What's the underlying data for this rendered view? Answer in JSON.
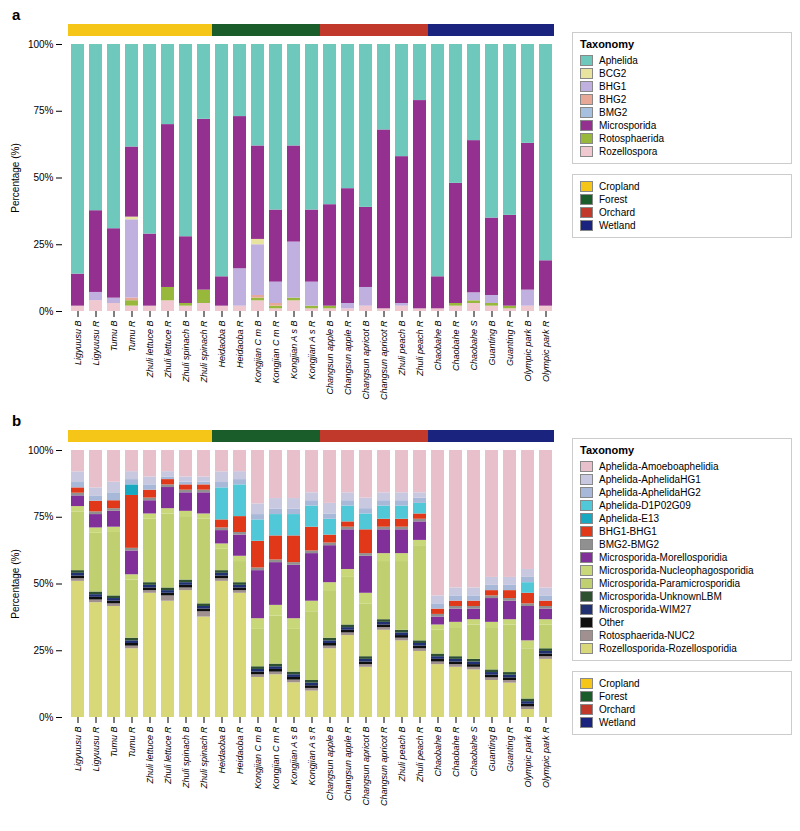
{
  "chart_data": [
    {
      "type": "bar",
      "stacked": true,
      "title": "a",
      "ylabel": "Percentage (%)",
      "ylim": [
        0,
        1
      ],
      "yticks": [
        {
          "value": 0,
          "label": "0%"
        },
        {
          "value": 0.25,
          "label": "25%"
        },
        {
          "value": 0.5,
          "label": "50%"
        },
        {
          "value": 0.75,
          "label": "75%"
        },
        {
          "value": 1,
          "label": "100%"
        }
      ],
      "grid": false,
      "legend": "right",
      "legend_title": "Taxonomy",
      "categories": [
        "Ligyuusu B",
        "Ligyuusu R",
        "Tumu B",
        "Tumu R",
        "Zhuli lettuce B",
        "Zhuli lettuce R",
        "Zhuli spinach B",
        "Zhuli spinach R",
        "Heidaoba B",
        "Heidaoba R",
        "Kongjian C m B",
        "Kongjian C m R",
        "Kongjian A s B",
        "Kongjian A s R",
        "Changsun apple B",
        "Changsun apple R",
        "Changsun apricot B",
        "Changsun apricot R",
        "Zhuli peach B",
        "Zhuli peach R",
        "Chaobahe B",
        "Chaobahe R",
        "Chaobahe S",
        "Guanting B",
        "Guanting R",
        "Olympic park B",
        "Olympic park R"
      ],
      "series": [
        {
          "name": "Rozellospora",
          "color": "#F0C8D0",
          "values": [
            0.02,
            0.0408,
            0.03,
            0.0202,
            0.02,
            0.04,
            0.02,
            0.03,
            0.02,
            0.02,
            0.04,
            0.01,
            0.04,
            0.01,
            0.01,
            0.01,
            0.02,
            0.01,
            0.02,
            0.01,
            0.01,
            0.02,
            0.03,
            0.02,
            0.01,
            0.02,
            0.02
          ]
        },
        {
          "name": "Rotosphaerida",
          "color": "#98B83C",
          "values": [
            0,
            0,
            0,
            0.0202,
            0,
            0.05,
            0.01,
            0.05,
            0,
            0,
            0.01,
            0.01,
            0.01,
            0.01,
            0.01,
            0,
            0,
            0,
            0,
            0,
            0,
            0.01,
            0.01,
            0.01,
            0.01,
            0,
            0
          ]
        },
        {
          "name": "BMG2",
          "color": "#A8C0E0",
          "values": [
            0,
            0,
            0,
            0,
            0,
            0,
            0,
            0,
            0,
            0,
            0,
            0,
            0,
            0,
            0,
            0,
            0,
            0,
            0,
            0,
            0,
            0,
            0,
            0,
            0,
            0,
            0
          ]
        },
        {
          "name": "BHG2",
          "color": "#E8A898",
          "values": [
            0,
            0,
            0,
            0.0101,
            0,
            0,
            0,
            0,
            0,
            0,
            0.01,
            0.01,
            0,
            0,
            0,
            0,
            0,
            0,
            0,
            0,
            0,
            0,
            0,
            0,
            0,
            0,
            0
          ]
        },
        {
          "name": "BHG1",
          "color": "#C0B0E0",
          "values": [
            0,
            0.0306,
            0.02,
            0.2929,
            0,
            0,
            0,
            0,
            0,
            0.14,
            0.19,
            0.08,
            0.21,
            0.09,
            0,
            0.02,
            0.07,
            0,
            0.01,
            0,
            0,
            0,
            0.03,
            0.03,
            0,
            0.06,
            0
          ]
        },
        {
          "name": "BCG2",
          "color": "#E8E4A0",
          "values": [
            0,
            0,
            0,
            0.0101,
            0,
            0,
            0,
            0,
            0,
            0,
            0.02,
            0,
            0,
            0,
            0,
            0,
            0,
            0,
            0,
            0,
            0,
            0,
            0,
            0,
            0,
            0,
            0
          ]
        },
        {
          "name": "Microsporida",
          "color": "#943090",
          "values": [
            0.12,
            0.3061,
            0.26,
            0.2626,
            0.27,
            0.61,
            0.25,
            0.64,
            0.11,
            0.57,
            0.35,
            0.27,
            0.36,
            0.27,
            0.38,
            0.43,
            0.3,
            0.67,
            0.55,
            0.78,
            0.12,
            0.45,
            0.57,
            0.29,
            0.34,
            0.55,
            0.17
          ]
        },
        {
          "name": "Aphelida",
          "color": "#6EC9BC",
          "values": [
            0.86,
            0.6224,
            0.69,
            0.3838,
            0.71,
            0.3,
            0.72,
            0.28,
            0.87,
            0.27,
            0.38,
            0.62,
            0.38,
            0.62,
            0.6,
            0.54,
            0.61,
            0.32,
            0.42,
            0.21,
            0.87,
            0.52,
            0.36,
            0.65,
            0.64,
            0.37,
            0.81
          ]
        }
      ],
      "groups": [
        {
          "name": "Cropland",
          "color": "#F5C518",
          "from": "Ligyuusu B",
          "to": "Zhuli spinach R"
        },
        {
          "name": "Forest",
          "color": "#1A5C2A",
          "from": "Heidaoba B",
          "to": "Kongjian A s R"
        },
        {
          "name": "Orchard",
          "color": "#C0392B",
          "from": "Changsun apple B",
          "to": "Zhuli peach R"
        },
        {
          "name": "Wetland",
          "color": "#1A237E",
          "from": "Chaobahe B",
          "to": "Olympic park R"
        }
      ]
    },
    {
      "type": "bar",
      "stacked": true,
      "title": "b",
      "ylabel": "Percentage (%)",
      "ylim": [
        0,
        1
      ],
      "yticks": [
        {
          "value": 0,
          "label": "0%"
        },
        {
          "value": 0.25,
          "label": "25%"
        },
        {
          "value": 0.5,
          "label": "50%"
        },
        {
          "value": 0.75,
          "label": "75%"
        },
        {
          "value": 1,
          "label": "100%"
        }
      ],
      "grid": false,
      "legend": "right",
      "legend_title": "Taxonomy",
      "categories": [
        "Ligyuusu B",
        "Ligyuusu R",
        "Tumu B",
        "Tumu R",
        "Zhuli lettuce B",
        "Zhuli lettuce R",
        "Zhuli spinach B",
        "Zhuli spinach R",
        "Heidaoba B",
        "Heidaoba R",
        "Kongjian C m B",
        "Kongjian C m R",
        "Kongjian A s B",
        "Kongjian A s R",
        "Changsun apple B",
        "Changsun apple R",
        "Changsun apricot B",
        "Changsun apricot R",
        "Zhuli peach B",
        "Zhuli peach R",
        "Chaobahe B",
        "Chaobahe R",
        "Chaobahe S",
        "Guanting B",
        "Guanting R",
        "Olympic park B",
        "Olympic park R"
      ],
      "series": [
        {
          "name": "Rozellosporida-Rozellosporidia",
          "color": "#D8D878",
          "values": [
            0.51,
            0.43,
            0.4158,
            0.2574,
            0.4653,
            0.4356,
            0.4752,
            0.3762,
            0.51,
            0.4653,
            0.15,
            0.16,
            0.13,
            0.099,
            0.2574,
            0.3069,
            0.1881,
            0.3267,
            0.2871,
            0.2475,
            0.198,
            0.1881,
            0.1782,
            0.1386,
            0.1287,
            0.0297,
            0.2178
          ]
        },
        {
          "name": "Rotosphaerida-NUC2",
          "color": "#A09090",
          "values": [
            0.01,
            0.01,
            0.0099,
            0.0099,
            0.0099,
            0.0198,
            0.0099,
            0.0198,
            0.01,
            0.0099,
            0.01,
            0.01,
            0.01,
            0.0099,
            0.0099,
            0.0099,
            0.0099,
            0.0099,
            0.0099,
            0.0099,
            0.0099,
            0.0099,
            0.0099,
            0.0099,
            0.0099,
            0.0099,
            0.0099
          ]
        },
        {
          "name": "Other",
          "color": "#101010",
          "values": [
            0.01,
            0.01,
            0.0099,
            0.0099,
            0.0099,
            0.0099,
            0.0099,
            0.0099,
            0.01,
            0.0099,
            0.01,
            0.01,
            0.01,
            0.0099,
            0.0099,
            0.0099,
            0.0099,
            0.0099,
            0.0099,
            0.0099,
            0.0099,
            0.0099,
            0.0099,
            0.0099,
            0.0099,
            0.0099,
            0.0099
          ]
        },
        {
          "name": "Microsporida-WIM27",
          "color": "#203070",
          "values": [
            0.01,
            0.01,
            0.0099,
            0.0099,
            0.0099,
            0.0099,
            0.0099,
            0.0099,
            0.01,
            0.0099,
            0.01,
            0.01,
            0.01,
            0.0099,
            0.0099,
            0.0099,
            0.0099,
            0.0099,
            0.0099,
            0.0099,
            0.0099,
            0.0099,
            0.0099,
            0.0099,
            0.0099,
            0.0099,
            0.0099
          ]
        },
        {
          "name": "Microsporida-UnknownLBM",
          "color": "#2C5030",
          "values": [
            0.01,
            0.01,
            0.0099,
            0.0099,
            0.0099,
            0.0099,
            0.0099,
            0.0099,
            0.01,
            0.0099,
            0.01,
            0.01,
            0.01,
            0.0099,
            0.0099,
            0.0099,
            0.0099,
            0.0099,
            0.0099,
            0.0099,
            0.0099,
            0.0099,
            0.0099,
            0.0099,
            0.0099,
            0.0099,
            0.0099
          ]
        },
        {
          "name": "Microsporida-Paramicrosporidia",
          "color": "#C0D070",
          "values": [
            0.22,
            0.22,
            0.2376,
            0.2178,
            0.2376,
            0.2772,
            0.2376,
            0.3168,
            0.08,
            0.0792,
            0.14,
            0.18,
            0.16,
            0.2574,
            0.1782,
            0.1782,
            0.198,
            0.2178,
            0.2574,
            0.3564,
            0.0891,
            0.1089,
            0.1287,
            0.1584,
            0.1782,
            0.1881,
            0.0891
          ]
        },
        {
          "name": "Microsporida-Nucleophagosporidia",
          "color": "#C8D878",
          "values": [
            0.02,
            0.02,
            0.0198,
            0.0198,
            0.0198,
            0.0198,
            0.0198,
            0.0198,
            0.02,
            0.0198,
            0.04,
            0.04,
            0.04,
            0.0396,
            0.0297,
            0.0297,
            0.0396,
            0.0297,
            0.0297,
            0.0198,
            0.0198,
            0.0198,
            0.0198,
            0.0198,
            0.0198,
            0.0297,
            0.0198
          ]
        },
        {
          "name": "Microsporida-Morellosporidia",
          "color": "#803098",
          "values": [
            0.04,
            0.05,
            0.0594,
            0.0891,
            0.0495,
            0.0792,
            0.0693,
            0.0792,
            0.05,
            0.0792,
            0.18,
            0.16,
            0.2,
            0.1782,
            0.1386,
            0.1485,
            0.1386,
            0.0891,
            0.0891,
            0.0693,
            0.0297,
            0.0495,
            0.0396,
            0.0891,
            0.0693,
            0.1287,
            0.0396
          ]
        },
        {
          "name": "BMG2-BMG2",
          "color": "#909090",
          "values": [
            0.01,
            0.01,
            0.0099,
            0.0099,
            0.0099,
            0.0099,
            0.0099,
            0.0099,
            0.01,
            0.0099,
            0.01,
            0.01,
            0.01,
            0.0099,
            0.0099,
            0.0099,
            0.0099,
            0.0099,
            0.0099,
            0.0099,
            0.0099,
            0.0099,
            0.0099,
            0.0099,
            0.0099,
            0.0099,
            0.0099
          ]
        },
        {
          "name": "BHG1-BHG1",
          "color": "#E03818",
          "values": [
            0.02,
            0.04,
            0.0297,
            0.198,
            0.0297,
            0.0198,
            0.0198,
            0.0198,
            0.03,
            0.0594,
            0.1,
            0.09,
            0.1,
            0.0891,
            0.0297,
            0.0198,
            0.0891,
            0.0297,
            0.0297,
            0.0198,
            0.0198,
            0.0198,
            0.0198,
            0.0198,
            0.0297,
            0.0396,
            0.0198
          ]
        },
        {
          "name": "Aphelida-E13",
          "color": "#18A8C0",
          "values": [
            0,
            0,
            0,
            0.0396,
            0,
            0,
            0,
            0,
            0,
            0,
            0,
            0,
            0,
            0,
            0,
            0,
            0,
            0,
            0,
            0,
            0,
            0,
            0,
            0,
            0,
            0,
            0
          ]
        },
        {
          "name": "Aphelida-D1P02G09",
          "color": "#50C8D8",
          "values": [
            0,
            0,
            0,
            0,
            0,
            0,
            0,
            0,
            0.12,
            0.1188,
            0.08,
            0.08,
            0.08,
            0.0792,
            0.0594,
            0.0594,
            0.0594,
            0.0495,
            0.0495,
            0.0396,
            0,
            0,
            0,
            0,
            0,
            0.0396,
            0
          ]
        },
        {
          "name": "Aphelida-AphelidaHG2",
          "color": "#A8B8D8",
          "values": [
            0.02,
            0.02,
            0.0297,
            0.0198,
            0.0198,
            0.0099,
            0.0099,
            0.0099,
            0.02,
            0.0198,
            0.02,
            0.02,
            0.02,
            0.0198,
            0.0198,
            0.0198,
            0.0198,
            0.0198,
            0.0198,
            0.0198,
            0.0198,
            0.0198,
            0.0198,
            0.0198,
            0.0198,
            0.0198,
            0.0198
          ]
        },
        {
          "name": "Aphelida-AphelidaHG1",
          "color": "#C8C8E0",
          "values": [
            0.04,
            0.03,
            0.0396,
            0.0297,
            0.0297,
            0.0198,
            0.0198,
            0.0198,
            0.04,
            0.0297,
            0.04,
            0.04,
            0.04,
            0.0297,
            0.0396,
            0.0297,
            0.0396,
            0.0297,
            0.0297,
            0.0198,
            0.0297,
            0.0297,
            0.0297,
            0.0297,
            0.0297,
            0.0297,
            0.0297
          ]
        },
        {
          "name": "Aphelida-Amoeboaphelidia",
          "color": "#E8C0CC",
          "values": [
            0.08,
            0.14,
            0.1188,
            0.0792,
            0.099,
            0.0792,
            0.099,
            0.099,
            0.08,
            0.0792,
            0.2,
            0.18,
            0.18,
            0.1584,
            0.198,
            0.1584,
            0.1782,
            0.1584,
            0.1584,
            0.1584,
            0.5446,
            0.5149,
            0.5149,
            0.4752,
            0.4752,
            0.4455,
            0.5149
          ]
        }
      ],
      "groups": [
        {
          "name": "Cropland",
          "color": "#F5C518",
          "from": "Ligyuusu B",
          "to": "Zhuli spinach R"
        },
        {
          "name": "Forest",
          "color": "#1A5C2A",
          "from": "Heidaoba B",
          "to": "Kongjian A s R"
        },
        {
          "name": "Orchard",
          "color": "#C0392B",
          "from": "Changsun apple B",
          "to": "Zhuli peach R"
        },
        {
          "name": "Wetland",
          "color": "#1A237E",
          "from": "Chaobahe B",
          "to": "Olympic park R"
        }
      ]
    }
  ]
}
